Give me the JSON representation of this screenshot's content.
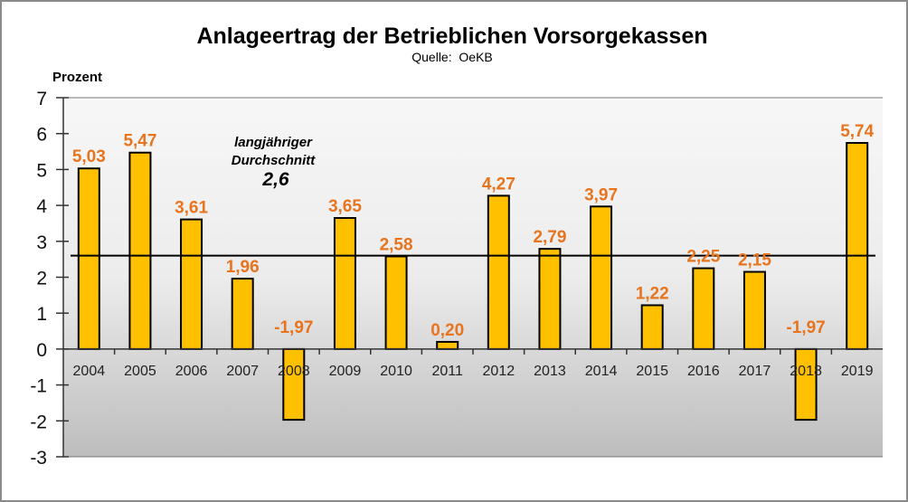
{
  "chart_data": {
    "type": "bar",
    "title": "Anlageertrag der Betrieblichen Vorsorgekassen",
    "subtitle": "Quelle:  OeKB",
    "ylabel": "Prozent",
    "xlabel": "",
    "ylim": [
      -3,
      7
    ],
    "yticks": [
      7,
      6,
      5,
      4,
      3,
      2,
      1,
      0,
      -1,
      -2,
      -3
    ],
    "categories": [
      "2004",
      "2005",
      "2006",
      "2007",
      "2008",
      "2009",
      "2010",
      "2011",
      "2012",
      "2013",
      "2014",
      "2015",
      "2016",
      "2017",
      "2018",
      "2019"
    ],
    "values": [
      5.03,
      5.47,
      3.61,
      1.96,
      -1.97,
      3.65,
      2.58,
      0.2,
      4.27,
      2.79,
      3.97,
      1.22,
      2.25,
      2.15,
      -1.97,
      5.74
    ],
    "data_labels": [
      "5,03",
      "5,47",
      "3,61",
      "1,96",
      "-1,97",
      "3,65",
      "2,58",
      "0,20",
      "4,27",
      "2,79",
      "3,97",
      "1,22",
      "2,25",
      "2,15",
      "-1,97",
      "5,74"
    ],
    "average": {
      "value": 2.6,
      "label_line1": "langjähriger",
      "label_line2": "Durchschnitt",
      "value_label": "2,6"
    },
    "grid": false,
    "legend": "none",
    "colors": {
      "bar": "#FFC000",
      "bar_outline": "#000000",
      "data_label": "#E8741E",
      "average_line": "#000000",
      "plot_bg_top": "#F7F7F7",
      "plot_bg_bottom": "#BDBDBD"
    }
  }
}
